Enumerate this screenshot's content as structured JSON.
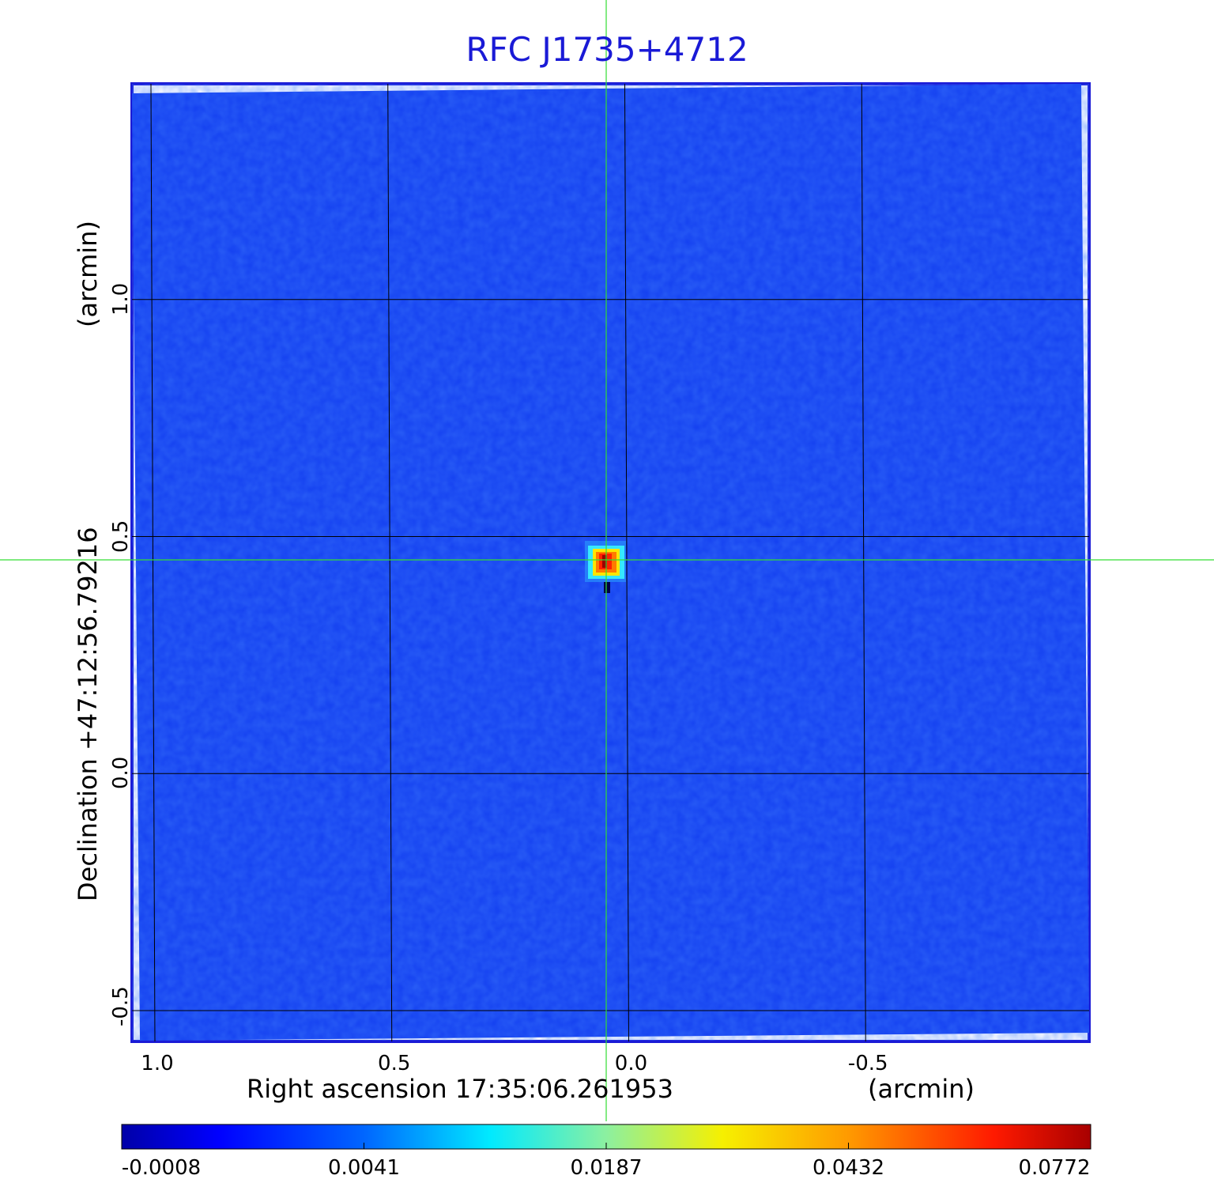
{
  "title": "RFC J1735+4712",
  "x_axis": {
    "label": "Right ascension  17:35:06.261953",
    "unit": "(arcmin)",
    "ticks": [
      "1.0",
      "0.5",
      "0.0",
      "-0.5"
    ],
    "tick_values": [
      1.0,
      0.5,
      0.0,
      -0.5
    ],
    "range": [
      1.04,
      -0.98
    ]
  },
  "y_axis": {
    "label": "Declination  +47:12:56.79216",
    "unit": "(arcmin)",
    "ticks": [
      "1.0",
      "0.5",
      "0.0",
      "-0.5"
    ],
    "tick_values": [
      1.0,
      0.5,
      0.0,
      -0.5
    ],
    "range": [
      -0.565,
      1.455
    ]
  },
  "source_position_arcmin": [
    0.035,
    0.45
  ],
  "colorbar": {
    "ticks": [
      "-0.0008",
      "0.0041",
      "0.0187",
      "0.0432",
      "0.0772"
    ],
    "colormap": "jet"
  },
  "colors": {
    "title": "#1a1ad6",
    "frame": "#1a1ad6",
    "background_map": "#1440f0",
    "crosshair": "#33dd33",
    "grid": "#000000"
  }
}
